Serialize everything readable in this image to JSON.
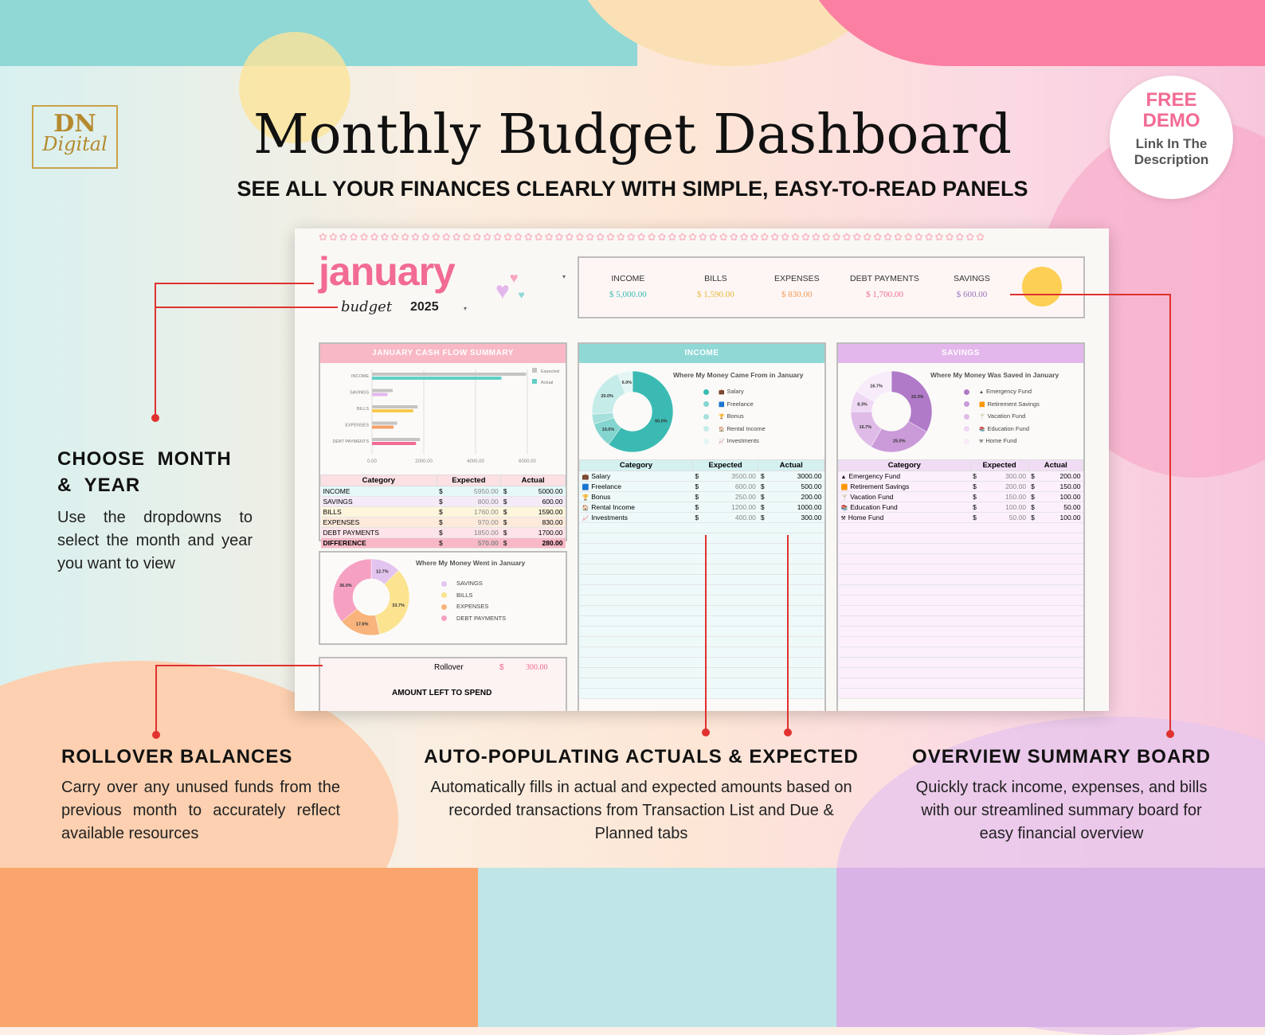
{
  "page": {
    "title": "Monthly Budget Dashboard",
    "subtitle": "SEE ALL YOUR FINANCES CLEARLY WITH SIMPLE, EASY-TO-READ PANELS",
    "logo": "DN Digital"
  },
  "badge": {
    "line1": "FREE",
    "line2": "DEMO",
    "line3": "Link In The",
    "line4": "Description"
  },
  "annotations": [
    {
      "title": "CHOOSE MONTH & YEAR",
      "text": "Use the dropdowns to select the month and year you want to view"
    },
    {
      "title": "ROLLOVER BALANCES",
      "text": "Carry over any unused funds from the previous month to accurately reflect available resources"
    },
    {
      "title": "AUTO-POPULATING ACTUALS & EXPECTED",
      "text": "Automatically fills in actual and expected amounts based on recorded transactions from Transaction List and Due & Planned tabs"
    },
    {
      "title": "OVERVIEW SUMMARY BOARD",
      "text": "Quickly track income, expenses, and bills with our streamlined summary board for easy financial overview"
    }
  ],
  "dashboard": {
    "month": "january",
    "budget_word": "budget",
    "year": "2025",
    "summary": [
      {
        "label": "INCOME",
        "value": "$ 5,000.00",
        "color": "#3bbab3"
      },
      {
        "label": "BILLS",
        "value": "$ 1,590.00",
        "color": "#e8b73a"
      },
      {
        "label": "EXPENSES",
        "value": "$ 830.00",
        "color": "#f29a55"
      },
      {
        "label": "DEBT PAYMENTS",
        "value": "$ 1,700.00",
        "color": "#ee6f95"
      },
      {
        "label": "SAVINGS",
        "value": "$ 600.00",
        "color": "#9a6fc0"
      }
    ],
    "cashflow": {
      "header": "JANUARY CASH FLOW SUMMARY",
      "columns": [
        "Category",
        "Expected",
        "Actual"
      ],
      "rows": [
        {
          "cat": "INCOME",
          "exp": "5950.00",
          "act": "5000.00",
          "bg": "#e6f8f8"
        },
        {
          "cat": "SAVINGS",
          "exp": "800.00",
          "act": "600.00",
          "bg": "#f5ebf8"
        },
        {
          "cat": "BILLS",
          "exp": "1760.00",
          "act": "1590.00",
          "bg": "#fdf5dc"
        },
        {
          "cat": "EXPENSES",
          "exp": "970.00",
          "act": "830.00",
          "bg": "#fdeadb"
        },
        {
          "cat": "DEBT PAYMENTS",
          "exp": "1850.00",
          "act": "1700.00",
          "bg": "#fde3ea"
        },
        {
          "cat": "DIFFERENCE",
          "exp": "570.00",
          "act": "280.00",
          "bg": "#f9b8c6"
        }
      ],
      "currency": "$"
    },
    "spent_pie": {
      "title": "Where My Money Went in January"
    },
    "rollover": {
      "label": "Rollover",
      "currency": "$",
      "value": "300.00",
      "left_label": "AMOUNT LEFT TO SPEND"
    },
    "income": {
      "header": "INCOME",
      "chart_title": "Where My Money Came From in January",
      "columns": [
        "Category",
        "Expected",
        "Actual"
      ],
      "rows": [
        {
          "icon": "💼",
          "cat": "Salary",
          "exp": "3500.00",
          "act": "3000.00"
        },
        {
          "icon": "🟦",
          "cat": "Freelance",
          "exp": "600.00",
          "act": "500.00"
        },
        {
          "icon": "🏆",
          "cat": "Bonus",
          "exp": "250.00",
          "act": "200.00"
        },
        {
          "icon": "🏠",
          "cat": "Rental Income",
          "exp": "1200.00",
          "act": "1000.00"
        },
        {
          "icon": "📈",
          "cat": "Investments",
          "exp": "400.00",
          "act": "300.00"
        }
      ]
    },
    "savings": {
      "header": "SAVINGS",
      "chart_title": "Where My Money Was Saved in January",
      "columns": [
        "Category",
        "Expected",
        "Actual"
      ],
      "rows": [
        {
          "icon": "▲",
          "cat": "Emergency Fund",
          "exp": "300.00",
          "act": "200.00"
        },
        {
          "icon": "🟧",
          "cat": "Retirement Savings",
          "exp": "200.00",
          "act": "150.00"
        },
        {
          "icon": "🍸",
          "cat": "Vacation Fund",
          "exp": "150.00",
          "act": "100.00"
        },
        {
          "icon": "📚",
          "cat": "Education Fund",
          "exp": "100.00",
          "act": "50.00"
        },
        {
          "icon": "⚒",
          "cat": "Home Fund",
          "exp": "50.00",
          "act": "100.00"
        }
      ]
    }
  },
  "chart_data": [
    {
      "type": "bar",
      "title": "JANUARY CASH FLOW SUMMARY",
      "orientation": "horizontal",
      "categories": [
        "INCOME",
        "SAVINGS",
        "BILLS",
        "EXPENSES",
        "DEBT PAYMENTS"
      ],
      "series": [
        {
          "name": "Expected",
          "values": [
            5950,
            800,
            1760,
            970,
            1850
          ],
          "color": "#c4c4c4"
        },
        {
          "name": "Actual",
          "values": [
            5000,
            600,
            1590,
            830,
            1700
          ],
          "colors": [
            "#5fcfc6",
            "#e3b6ec",
            "#f8c94e",
            "#f7a066",
            "#f26b93"
          ]
        }
      ],
      "xlim": [
        0,
        6000
      ],
      "xticks": [
        "0.00",
        "2000.00",
        "4000.00",
        "6000.00"
      ],
      "legend": "top-right"
    },
    {
      "type": "pie",
      "title": "Where My Money Went in January",
      "labels": [
        "SAVINGS",
        "BILLS",
        "EXPENSES",
        "DEBT PAYMENTS"
      ],
      "values": [
        12.7,
        33.7,
        17.6,
        36.0
      ],
      "colors": [
        "#e3c3ef",
        "#fbe38f",
        "#f8b47c",
        "#f6a0c2"
      ]
    },
    {
      "type": "pie",
      "title": "Where My Money Came From in January",
      "labels": [
        "Salary",
        "Freelance",
        "Bonus",
        "Rental Income",
        "Investments"
      ],
      "values": [
        60.0,
        10.0,
        4.0,
        20.0,
        6.0
      ],
      "colors": [
        "#3bbab3",
        "#84d4cf",
        "#a6e0dc",
        "#c5ece9",
        "#e3f6f4"
      ]
    },
    {
      "type": "pie",
      "title": "Where My Money Was Saved in January",
      "labels": [
        "Emergency Fund",
        "Retirement Savings",
        "Vacation Fund",
        "Education Fund",
        "Home Fund"
      ],
      "values": [
        33.3,
        25.0,
        16.7,
        8.3,
        16.7
      ],
      "colors": [
        "#b07ac8",
        "#cb9ad9",
        "#dfbce8",
        "#efd8f3",
        "#f8ebfa"
      ]
    }
  ]
}
